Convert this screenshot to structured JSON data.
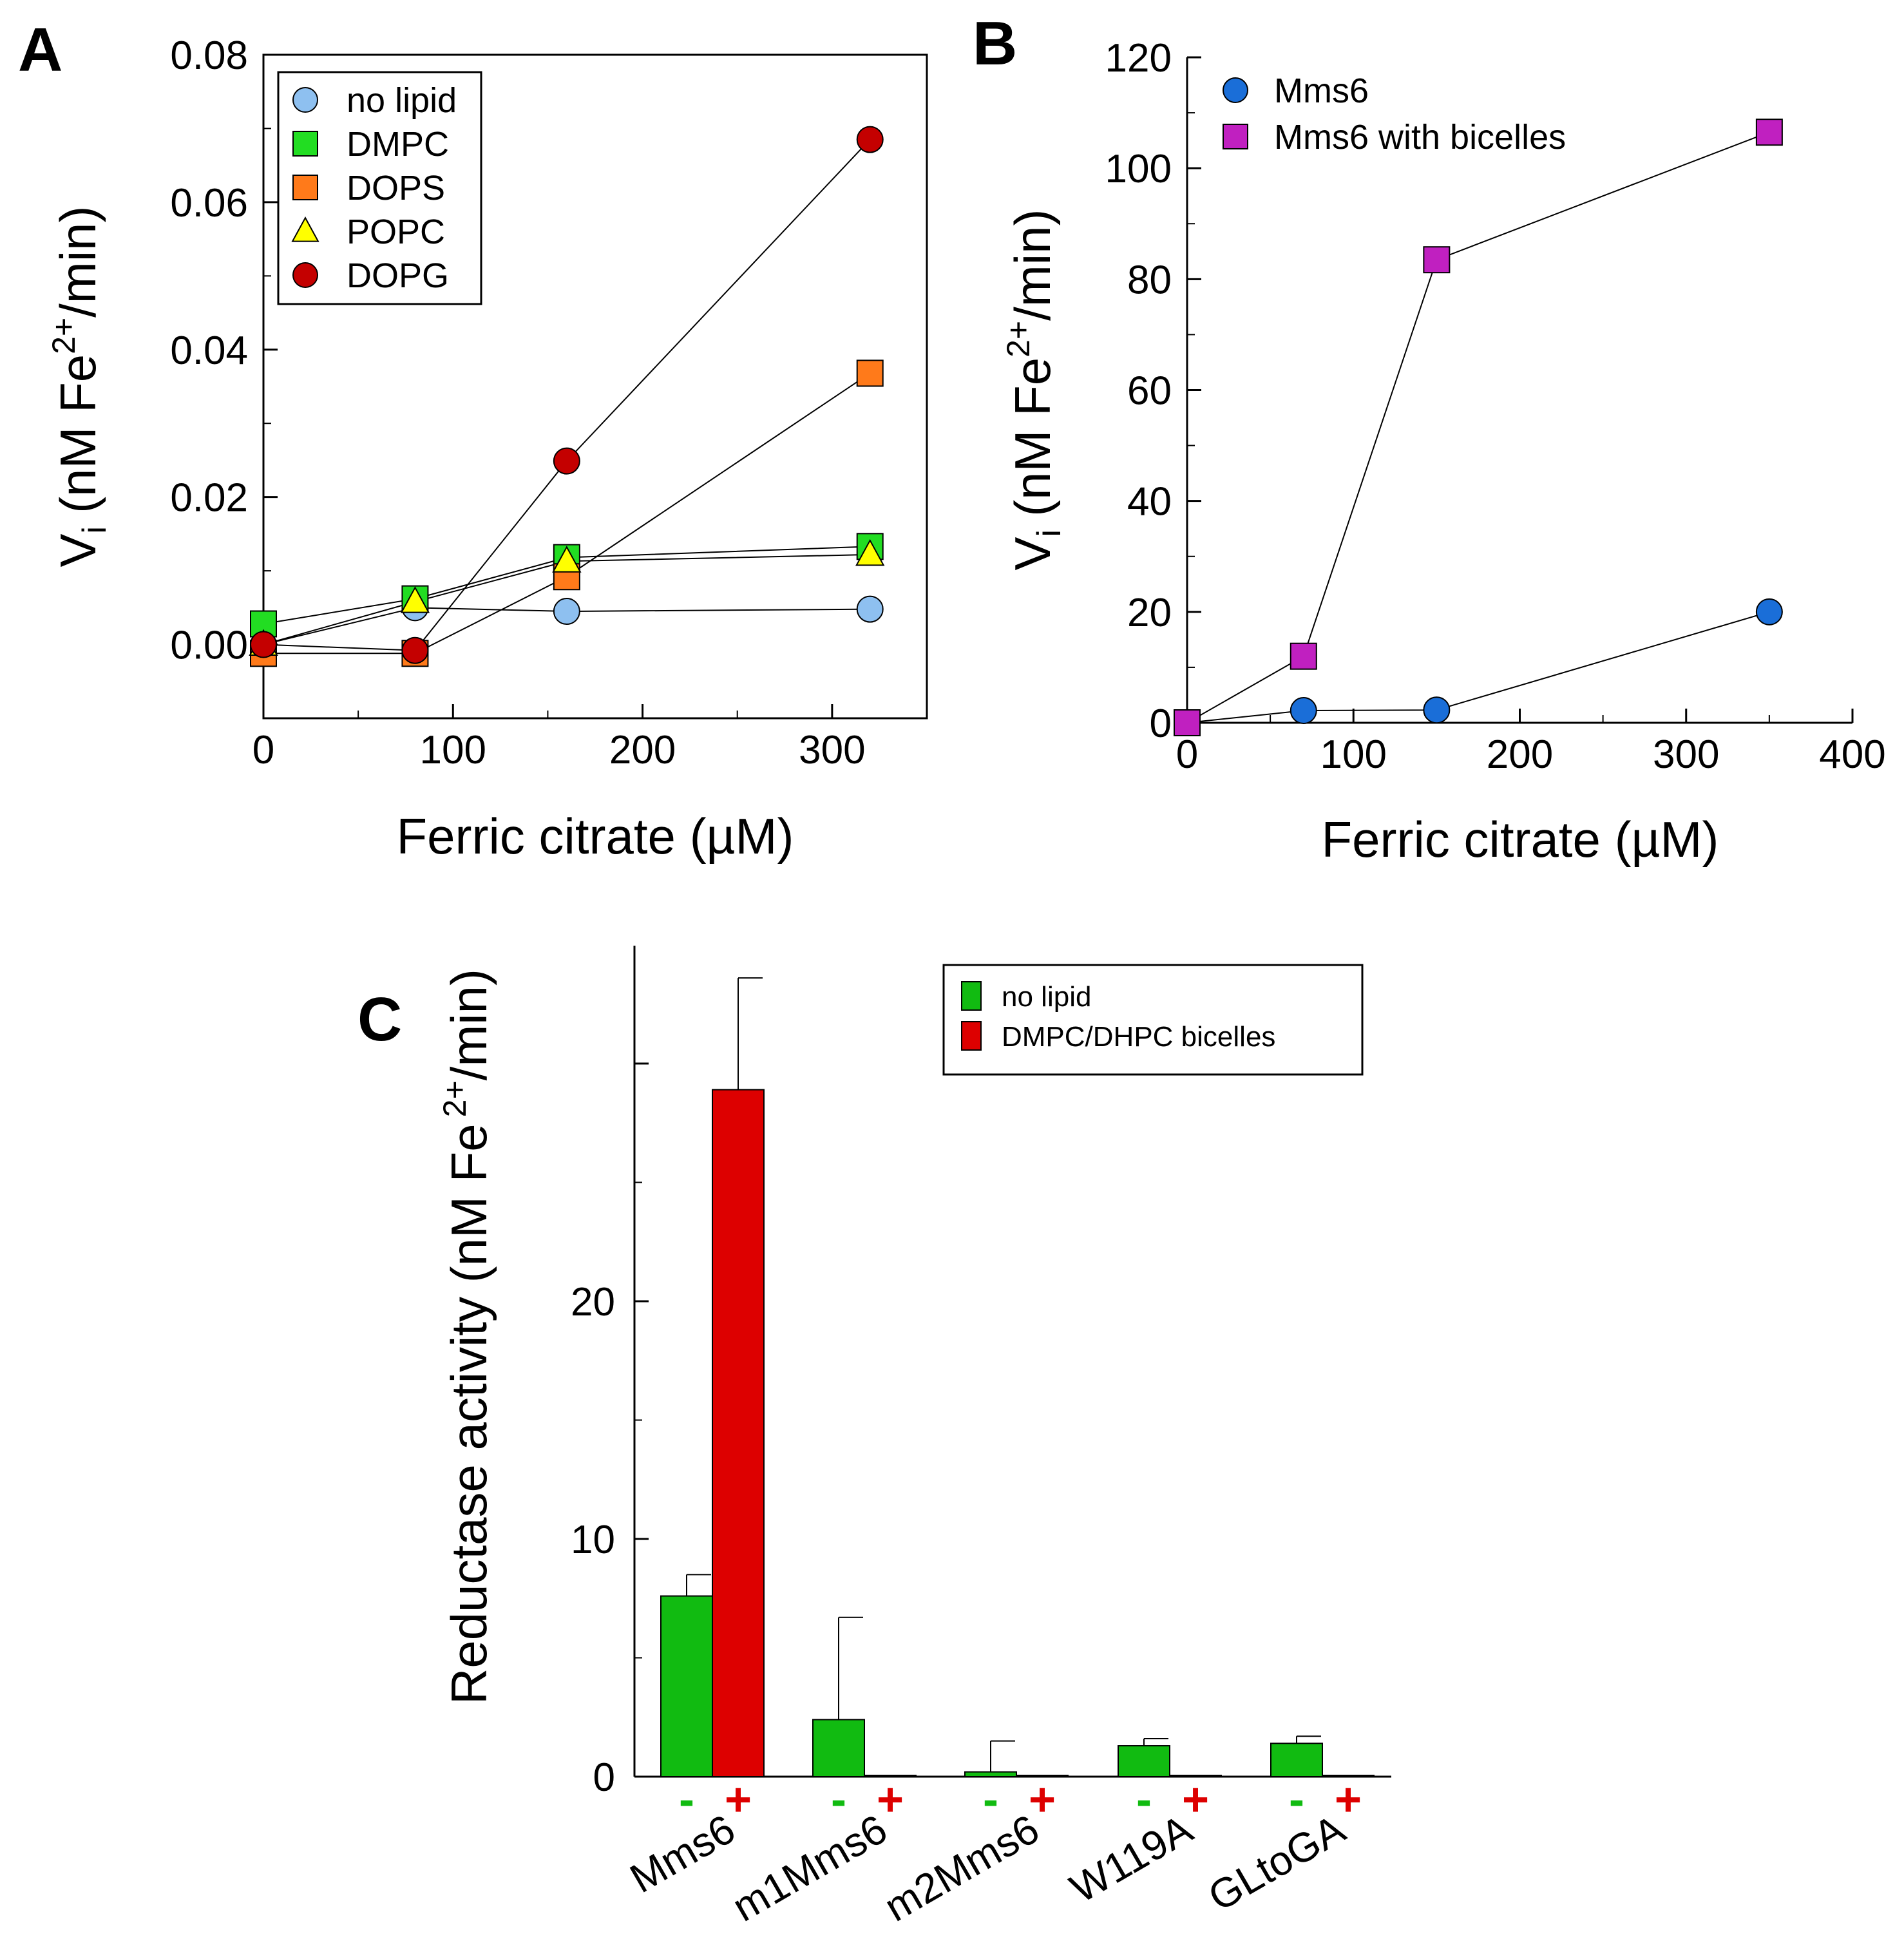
{
  "chart_data": [
    {
      "panel": "A",
      "type": "line",
      "xlabel": "Ferric citrate (µM)",
      "ylabel_main": "V",
      "ylabel_sub": "i",
      "ylabel_unit": "(nM Fe",
      "ylabel_sup": "2+",
      "ylabel_tail": "/min)",
      "xlim": [
        0,
        350
      ],
      "ylim": [
        -0.01,
        0.08
      ],
      "xticks": [
        0,
        100,
        200,
        300
      ],
      "xtick_labels": [
        "0",
        "100",
        "200",
        "300"
      ],
      "yticks": [
        0.0,
        0.02,
        0.04,
        0.06,
        0.08
      ],
      "ytick_labels": [
        "0.00",
        "0.02",
        "0.04",
        "0.06",
        "0.08"
      ],
      "legend_position": "top-left",
      "series": [
        {
          "name": "no lipid",
          "marker": "circle",
          "color": "#8ec0f0",
          "x": [
            0,
            80,
            160,
            320
          ],
          "y": [
            0.0,
            0.005,
            0.0045,
            0.0048
          ]
        },
        {
          "name": "DMPC",
          "marker": "square",
          "color": "#22dd22",
          "x": [
            0,
            80,
            160,
            320
          ],
          "y": [
            0.0028,
            0.0062,
            0.0118,
            0.0133
          ]
        },
        {
          "name": "DOPS",
          "marker": "square",
          "color": "#ff7a1a",
          "x": [
            0,
            80,
            160,
            320
          ],
          "y": [
            -0.0012,
            -0.0012,
            0.0092,
            0.0368
          ]
        },
        {
          "name": "POPC",
          "marker": "triangle",
          "color": "#ffff00",
          "x": [
            0,
            80,
            160,
            320
          ],
          "y": [
            0.0,
            0.0058,
            0.0113,
            0.0122
          ]
        },
        {
          "name": "DOPG",
          "marker": "circle",
          "color": "#c40000",
          "x": [
            0,
            80,
            160,
            320
          ],
          "y": [
            0.0,
            -0.0008,
            0.0249,
            0.0685
          ]
        }
      ]
    },
    {
      "panel": "B",
      "type": "line",
      "xlabel": "Ferric citrate (µM)",
      "ylabel_main": "V",
      "ylabel_sub": "i",
      "ylabel_unit": "(nM Fe",
      "ylabel_sup": "2+",
      "ylabel_tail": "/min)",
      "xlim": [
        0,
        400
      ],
      "ylim": [
        0,
        120
      ],
      "xticks": [
        0,
        100,
        200,
        300,
        400
      ],
      "xtick_labels": [
        "0",
        "100",
        "200",
        "300",
        "400"
      ],
      "yticks": [
        0,
        20,
        40,
        60,
        80,
        100,
        120
      ],
      "ytick_labels": [
        "0",
        "20",
        "40",
        "60",
        "80",
        "100",
        "120"
      ],
      "legend_position": "top-left",
      "series": [
        {
          "name": "Mms6",
          "marker": "circle",
          "color": "#1a6ed8",
          "x": [
            0,
            70,
            150,
            350
          ],
          "y": [
            0,
            2.2,
            2.3,
            20
          ]
        },
        {
          "name": "Mms6 with bicelles",
          "marker": "square",
          "color": "#c020c0",
          "x": [
            0,
            70,
            150,
            350
          ],
          "y": [
            0,
            12,
            83.5,
            106.5
          ]
        }
      ]
    },
    {
      "panel": "C",
      "type": "bar",
      "ylabel_main": "Reductase activity (nM Fe",
      "ylabel_sup": "2+",
      "ylabel_tail": "/min)",
      "ylim": [
        0,
        34
      ],
      "yticks": [
        0,
        10,
        20
      ],
      "ytick_labels": [
        "0",
        "10",
        "20"
      ],
      "categories": [
        "Mms6",
        "m1Mms6",
        "m2Mms6",
        "W119A",
        "GLtoGA"
      ],
      "condition_markers": [
        "-",
        "+"
      ],
      "legend_position": "top-right",
      "series": [
        {
          "name": "no lipid",
          "color": "#11bb11",
          "values": [
            7.6,
            2.4,
            0.2,
            1.3,
            1.4
          ],
          "errors": [
            0.9,
            4.3,
            1.3,
            0.3,
            0.3
          ]
        },
        {
          "name": "DMPC/DHPC bicelles",
          "color": "#dd0000",
          "values": [
            28.9,
            0.05,
            0.05,
            0.05,
            0.05
          ],
          "errors": [
            4.7,
            0,
            0,
            0,
            0
          ]
        }
      ]
    }
  ],
  "panel_labels": [
    "A",
    "B",
    "C"
  ]
}
